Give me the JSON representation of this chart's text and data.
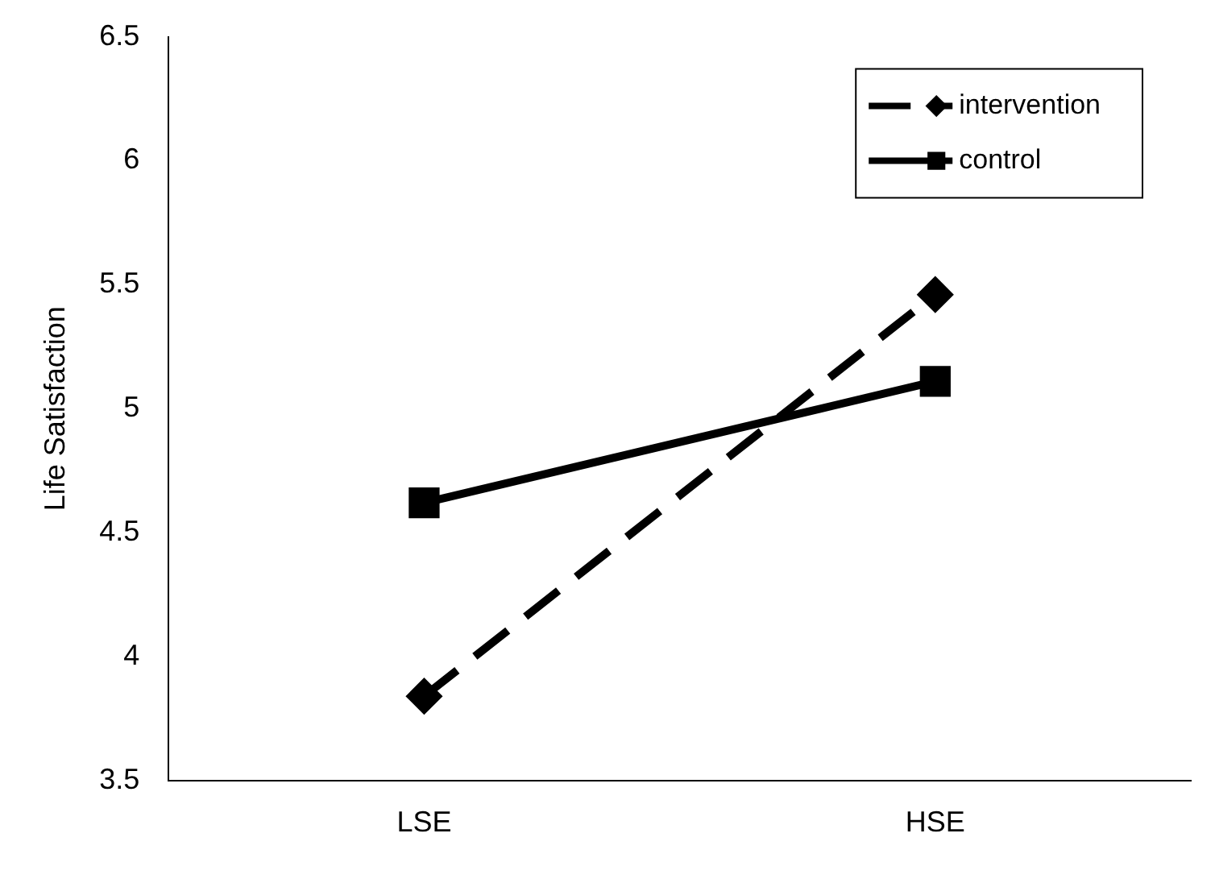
{
  "chart_data": {
    "type": "line",
    "ylabel": "Life Satisfaction",
    "categories": [
      "LSE",
      "HSE"
    ],
    "series": [
      {
        "name": "intervention",
        "color": "#000000",
        "values": [
          3.84,
          5.46
        ],
        "marker": "diamond",
        "line_style": "dashed"
      },
      {
        "name": "control",
        "color": "#000000",
        "values": [
          4.62,
          5.11
        ],
        "marker": "square",
        "line_style": "solid"
      }
    ],
    "ylim": [
      3.5,
      6.5
    ],
    "yticks": [
      3.5,
      4,
      4.5,
      5,
      5.5,
      6,
      6.5
    ],
    "grid": false,
    "legend": "top right"
  }
}
